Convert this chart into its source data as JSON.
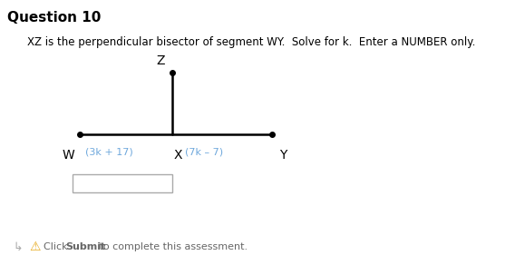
{
  "title": "Question 10",
  "instruction": "XZ is the perpendicular bisector of segment WY.  Solve for k.  Enter a NUMBER only.",
  "label_W": "W",
  "label_Y": "Y",
  "label_X": "X",
  "label_Z": "Z",
  "expr_left": "(3k + 17)",
  "expr_right": "(7k – 7)",
  "bg_color": "#ffffff",
  "line_color": "#000000",
  "label_color": "#000000",
  "expr_color": "#6fa8dc",
  "title_color": "#000000",
  "footer_color": "#666666",
  "warn_color": "#e6a817",
  "rule_color": "#cccccc",
  "box_edge_color": "#aaaaaa",
  "arrow_guide_color": "#aaaaaa",
  "fig_w": 5.68,
  "fig_h": 3.03,
  "dpi": 100
}
